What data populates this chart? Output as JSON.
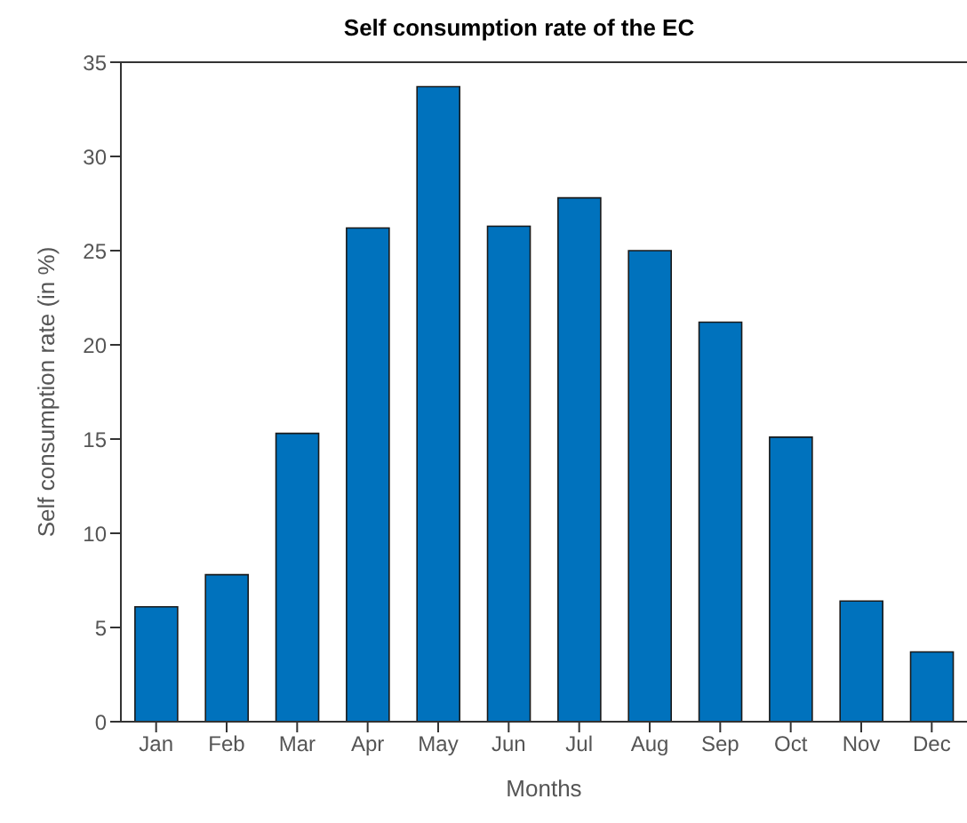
{
  "chart_data": {
    "type": "bar",
    "title": "Self consumption rate of the EC",
    "xlabel": "Months",
    "ylabel": "Self consumption rate (in %)",
    "categories": [
      "Jan",
      "Feb",
      "Mar",
      "Apr",
      "May",
      "Jun",
      "Jul",
      "Aug",
      "Sep",
      "Oct",
      "Nov",
      "Dec"
    ],
    "values": [
      6.1,
      7.8,
      15.3,
      26.2,
      33.7,
      26.3,
      27.8,
      25.0,
      21.2,
      15.1,
      6.4,
      3.7
    ],
    "color": "#0072bd",
    "ylim": [
      0,
      35
    ],
    "yticks": [
      0,
      5,
      10,
      15,
      20,
      25,
      30,
      35
    ],
    "grid": false
  }
}
